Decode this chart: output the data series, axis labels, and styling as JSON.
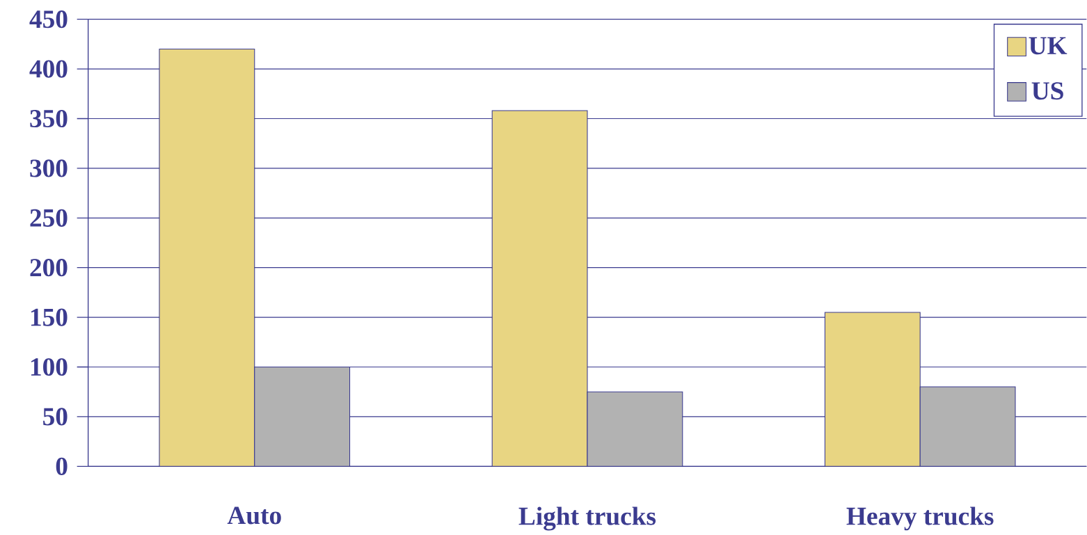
{
  "chart_data": {
    "type": "bar",
    "categories": [
      "Auto",
      "Light trucks",
      "Heavy trucks"
    ],
    "series": [
      {
        "name": "UK",
        "color": "#e8d582",
        "values": [
          420,
          358,
          155
        ]
      },
      {
        "name": "US",
        "color": "#b2b2b2",
        "values": [
          100,
          75,
          80
        ]
      }
    ],
    "ylim": [
      0,
      450
    ],
    "yticks": [
      0,
      50,
      100,
      150,
      200,
      250,
      300,
      350,
      400,
      450
    ],
    "grid": "y",
    "legend": "top right"
  }
}
